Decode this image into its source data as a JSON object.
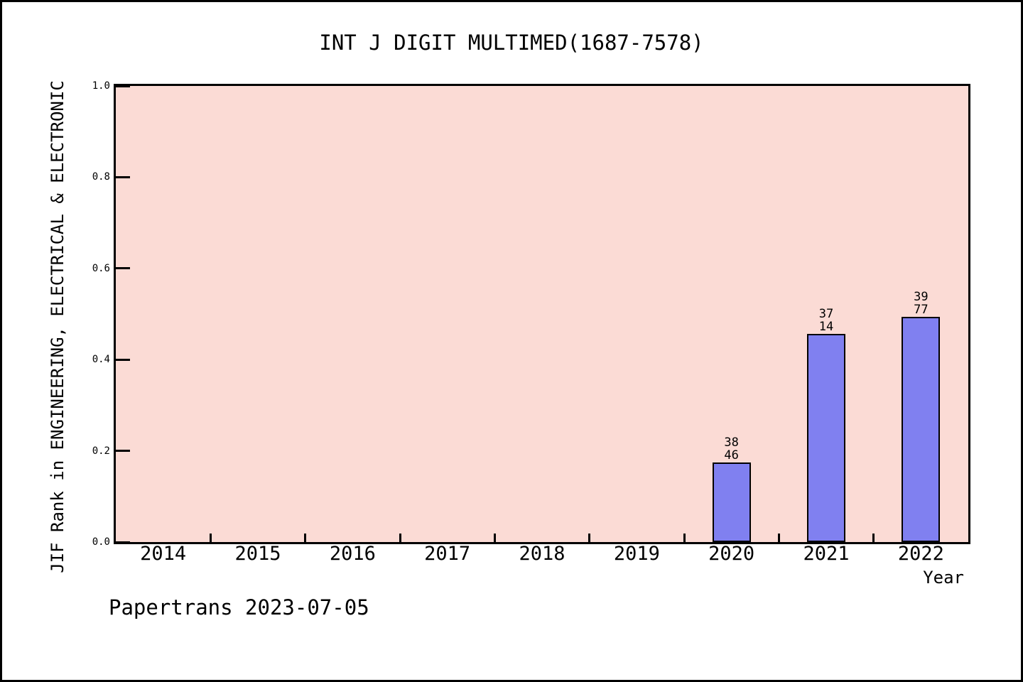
{
  "page": {
    "footer": "Papertrans 2023-07-05"
  },
  "chart_data": {
    "type": "bar",
    "title": "INT J DIGIT MULTIMED(1687-7578)",
    "xlabel": "Year",
    "ylabel": "JIF Rank in ENGINEERING, ELECTRICAL & ELECTRONIC",
    "categories": [
      "2014",
      "2015",
      "2016",
      "2017",
      "2018",
      "2019",
      "2020",
      "2021",
      "2022"
    ],
    "values": [
      null,
      null,
      null,
      null,
      null,
      null,
      0.174,
      0.456,
      0.494
    ],
    "bars": [
      {
        "category": "2020",
        "value": 0.174,
        "label_lines": [
          "38",
          "46"
        ]
      },
      {
        "category": "2021",
        "value": 0.456,
        "label_lines": [
          "37",
          "14"
        ]
      },
      {
        "category": "2022",
        "value": 0.494,
        "label_lines": [
          "39",
          "77"
        ]
      }
    ],
    "ylim": [
      0,
      1
    ],
    "yticks": [
      0.0,
      0.2,
      0.4,
      0.6,
      0.8,
      1.0
    ],
    "ytick_labels": [
      "0.0",
      "0.2",
      "0.4",
      "0.6",
      "0.8",
      "1.0"
    ],
    "grid": false,
    "legend_position": "none",
    "colors": {
      "bar_fill": "#8080f0",
      "bar_border": "#000000",
      "plot_background": "#fbdbd5",
      "page_background": "#ffffff",
      "text": "#000000"
    }
  }
}
